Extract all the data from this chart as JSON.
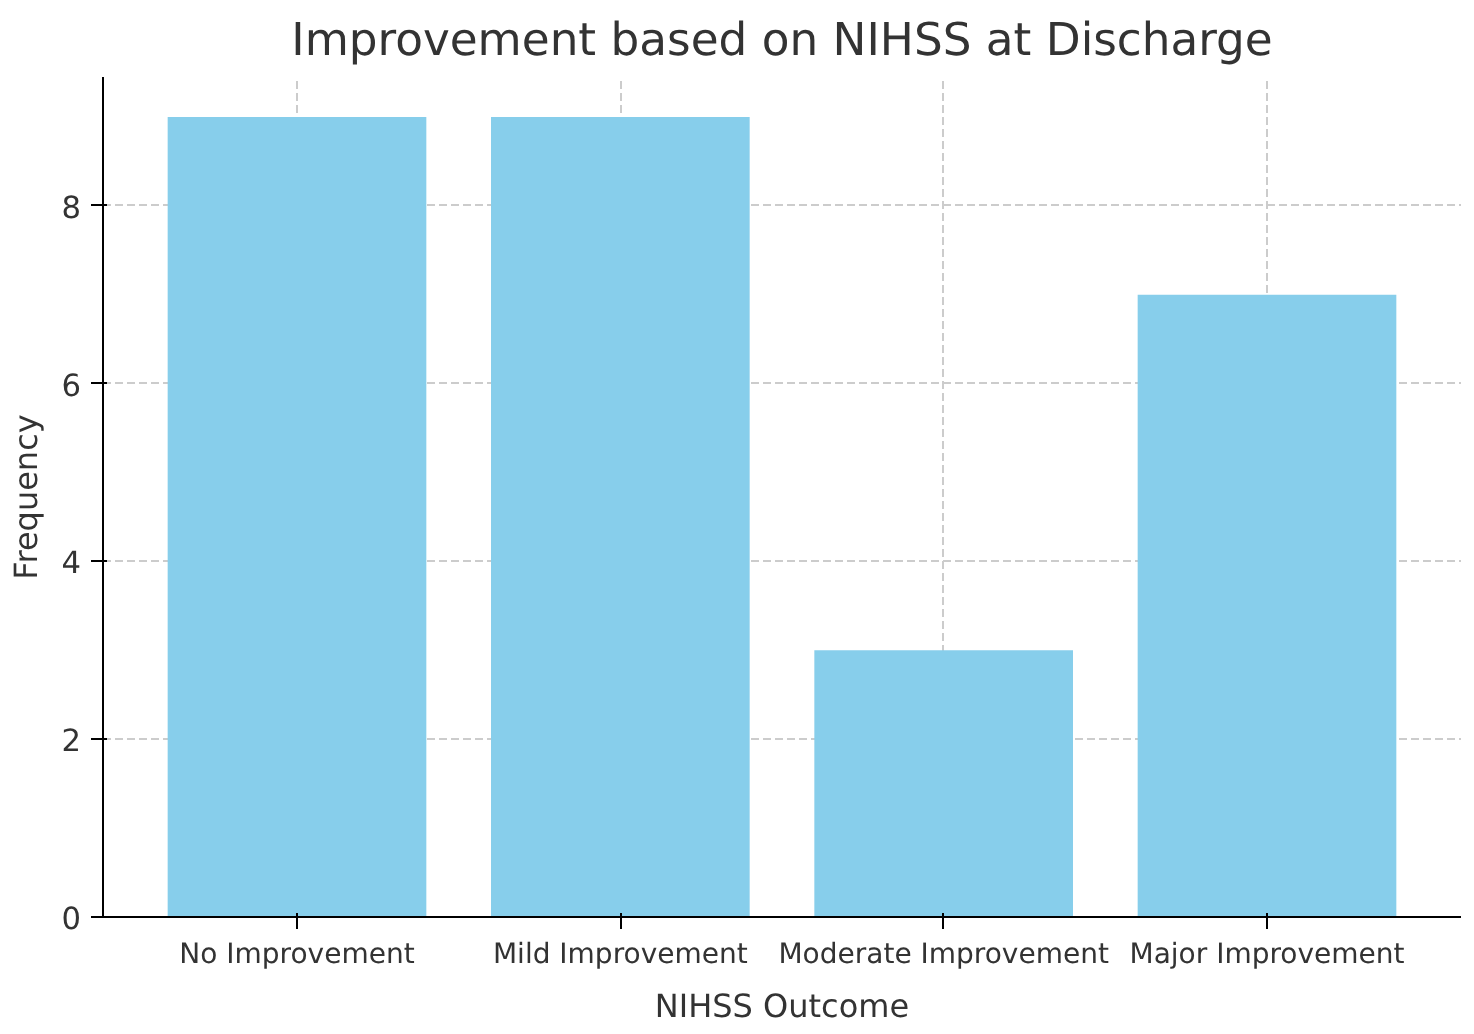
{
  "chart_data": {
    "type": "bar",
    "title": "Improvement based on NIHSS at Discharge",
    "xlabel": "NIHSS Outcome",
    "ylabel": "Frequency",
    "categories": [
      "No Improvement",
      "Mild Improvement",
      "Moderate Improvement",
      "Major Improvement"
    ],
    "values": [
      9,
      9,
      3,
      7
    ],
    "color": "#87ceeb",
    "ylim": [
      0,
      9.45
    ],
    "yticks": [
      0,
      2,
      4,
      6,
      8
    ],
    "grid": true
  }
}
